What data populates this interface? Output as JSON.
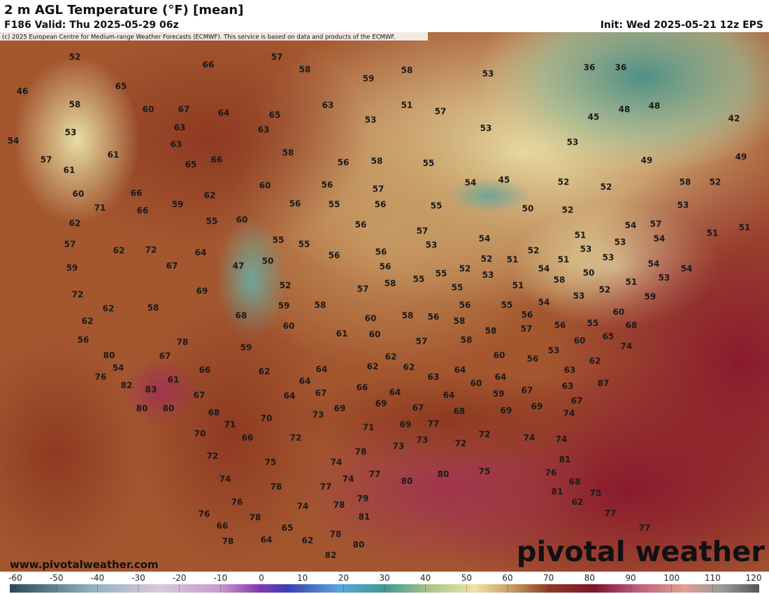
{
  "header": {
    "title": "2 m AGL Temperature (°F) [mean]",
    "valid": "F186 Valid: Thu 2025-05-29 06z",
    "init": "Init: Wed 2025-05-21 12z EPS",
    "copyright": "(c) 2025 European Centre for Medium-range Weather Forecasts (ECMWF). This service is based on data and products of the ECMWF."
  },
  "map": {
    "labels": [
      52,
      57,
      66,
      58,
      58,
      59,
      53,
      36,
      36,
      46,
      65,
      58,
      60,
      67,
      64,
      65,
      63,
      51,
      57,
      48,
      48,
      42,
      53,
      63,
      63,
      53,
      53,
      45,
      54,
      61,
      63,
      58,
      53,
      57,
      65,
      66,
      56,
      58,
      55,
      49,
      49,
      61,
      60,
      66,
      62,
      60,
      56,
      57,
      54,
      45,
      52,
      52,
      58,
      52,
      71,
      66,
      59,
      56,
      55,
      56,
      55,
      53,
      62,
      55,
      60,
      56,
      57,
      50,
      52,
      54,
      57,
      51,
      51,
      57,
      62,
      72,
      64,
      55,
      55,
      56,
      56,
      53,
      54,
      51,
      54,
      53,
      59,
      67,
      47,
      50,
      56,
      55,
      55,
      52,
      52,
      51,
      52,
      54,
      51,
      53,
      53,
      54,
      54,
      53,
      58,
      50,
      72,
      69,
      52,
      57,
      58,
      55,
      51,
      52,
      51,
      53,
      62,
      58,
      59,
      58,
      56,
      55,
      54,
      53,
      62,
      68,
      60,
      60,
      58,
      56,
      58,
      58,
      56,
      56,
      55,
      60,
      59,
      68,
      56,
      78,
      61,
      60,
      57,
      58,
      57,
      60,
      65,
      74,
      80,
      67,
      59,
      60,
      56,
      53,
      76,
      54,
      66,
      62,
      64,
      62,
      62,
      62,
      64,
      63,
      62,
      82,
      83,
      61,
      64,
      63,
      60,
      64,
      67,
      63,
      87,
      67,
      64,
      67,
      66,
      64,
      64,
      59,
      80,
      80,
      68,
      69,
      69,
      67,
      68,
      69,
      69,
      67,
      73,
      74,
      71,
      70,
      71,
      69,
      77,
      70,
      66,
      72,
      73,
      72,
      72,
      74,
      74,
      73,
      78,
      72,
      75,
      74,
      81,
      80,
      80,
      75,
      74,
      77,
      74,
      77,
      76,
      68,
      78,
      81,
      75,
      76,
      74,
      78,
      79,
      62,
      76,
      78,
      81,
      77,
      66,
      65,
      62,
      78,
      80,
      77,
      78,
      64,
      82
    ]
  },
  "colorbar": {
    "ticks": [
      -60,
      -50,
      -40,
      -30,
      -20,
      -10,
      0,
      10,
      20,
      30,
      40,
      50,
      60,
      70,
      80,
      90,
      100,
      110,
      120
    ]
  },
  "website": "www.pivotalweather.com",
  "watermark": "pivotal weather"
}
